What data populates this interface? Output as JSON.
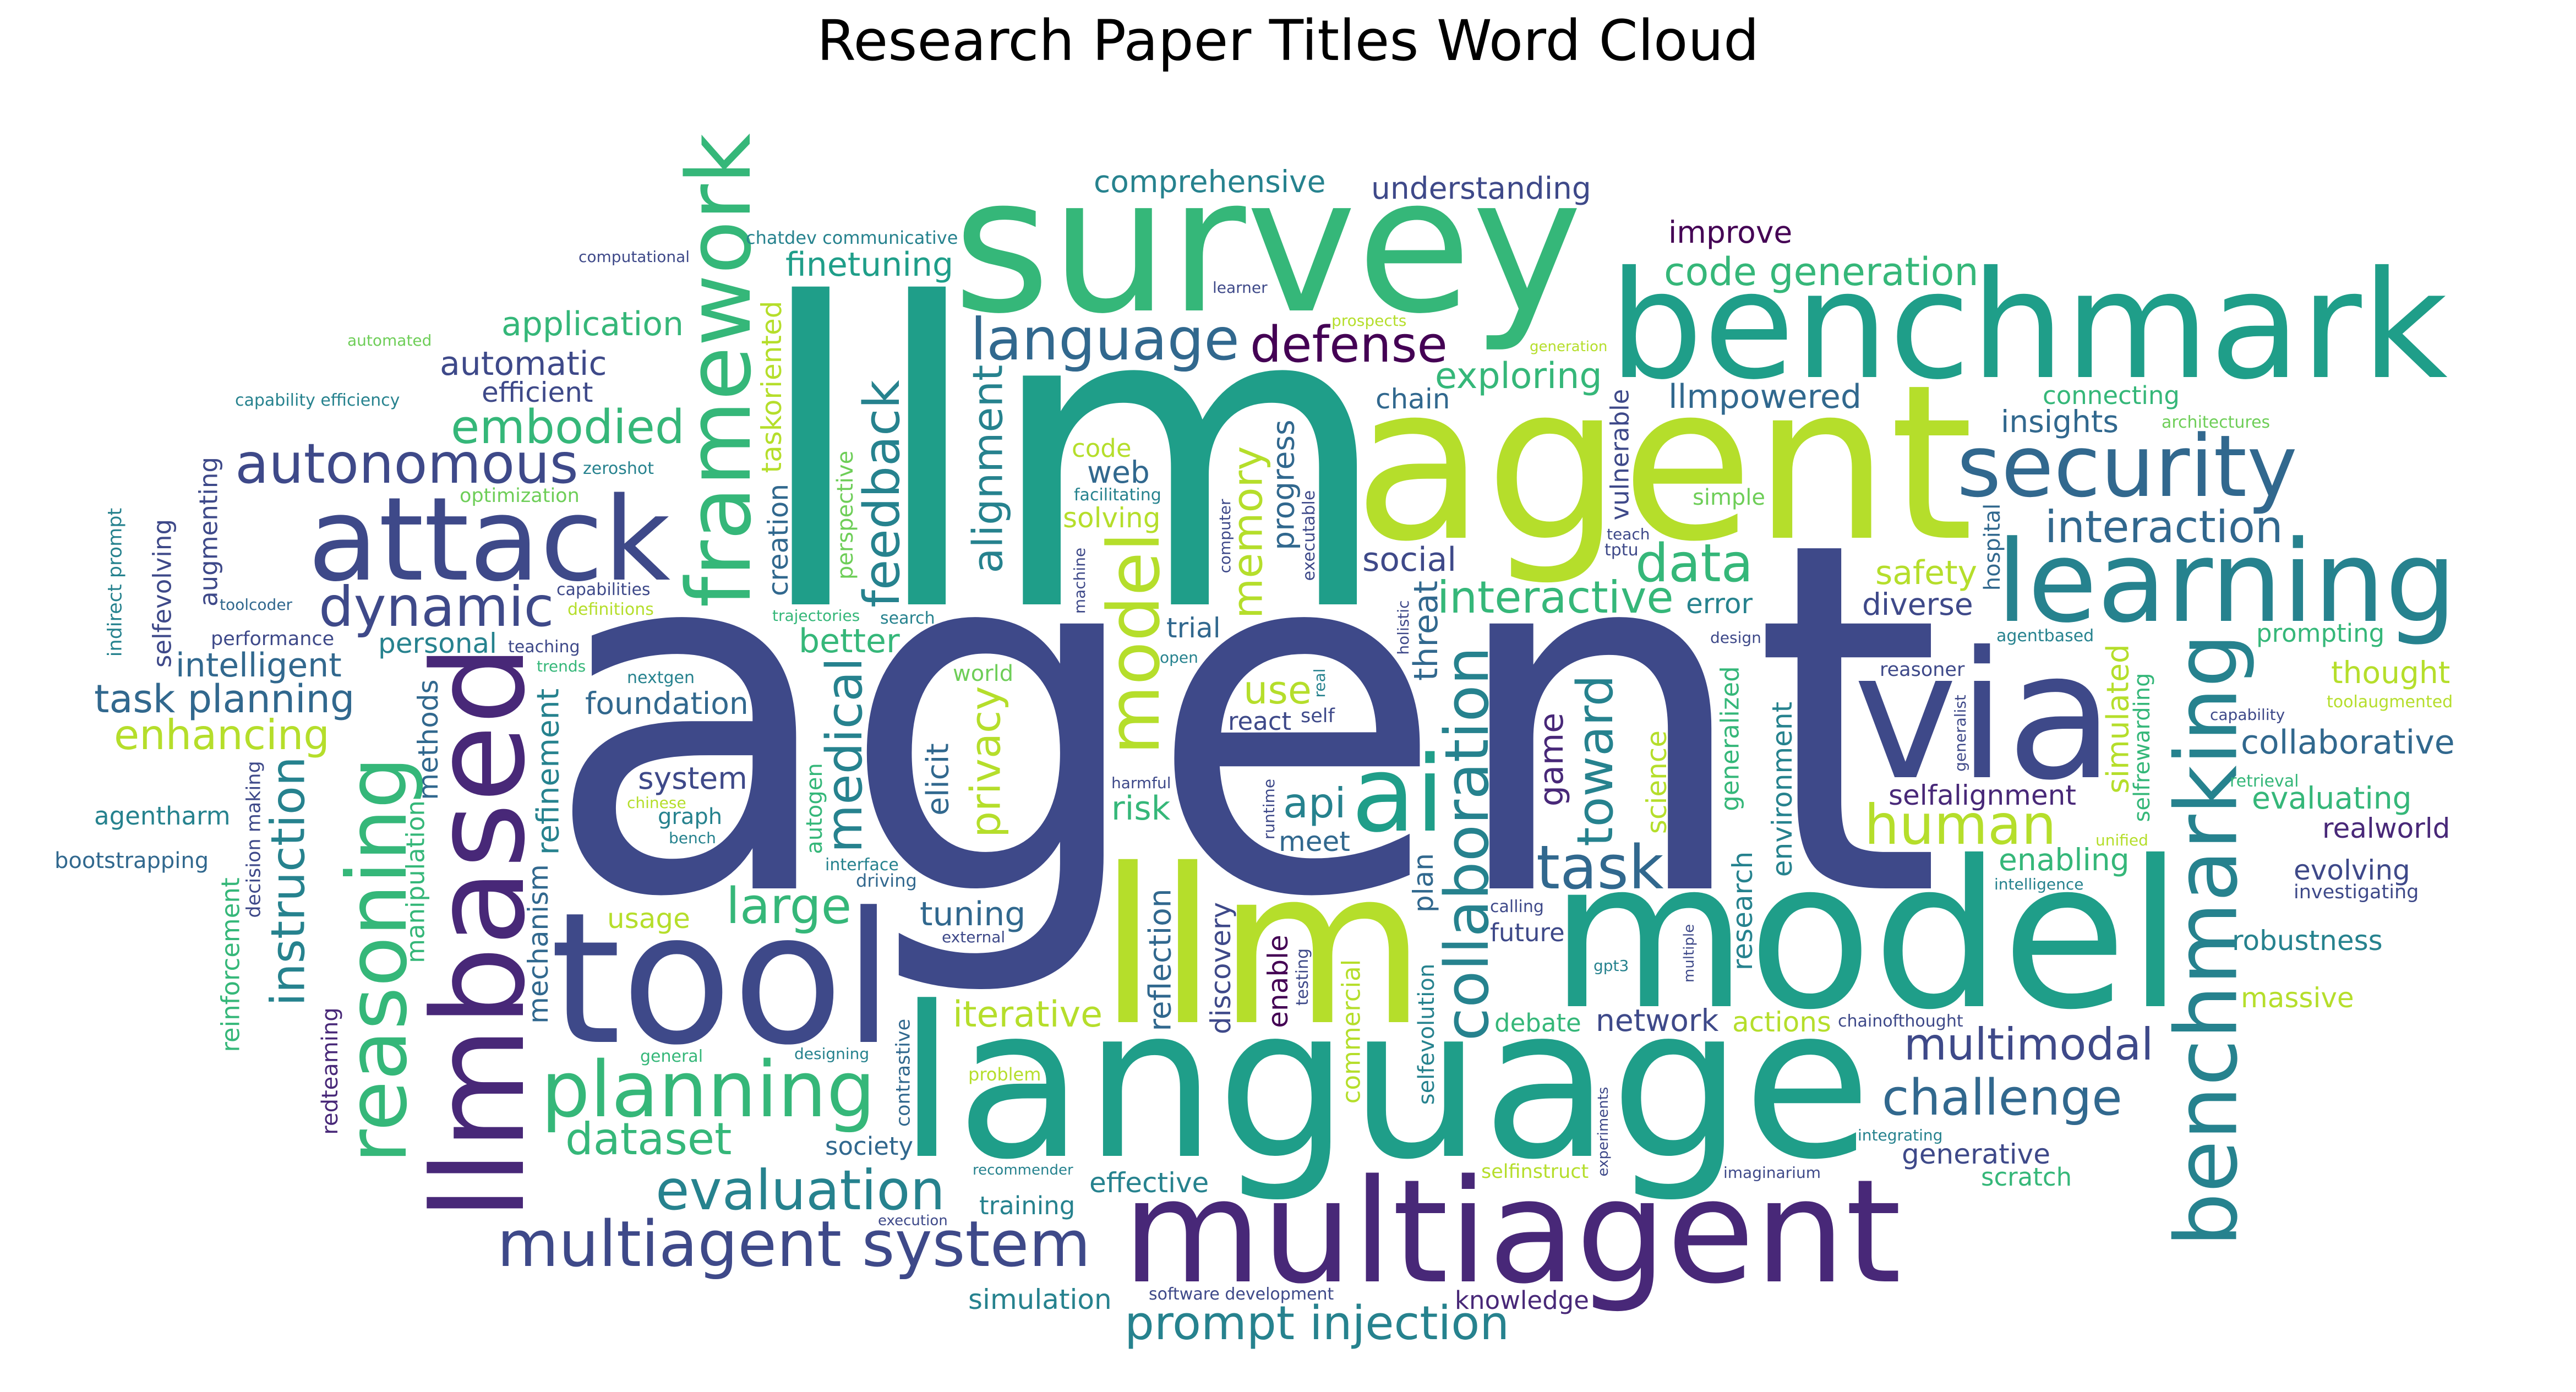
{
  "title": "Research Paper Titles Word Cloud",
  "palette": [
    "#440154",
    "#482878",
    "#3e4989",
    "#31688e",
    "#26828e",
    "#1f9e89",
    "#35b779",
    "#6ece58",
    "#b5de2b",
    "#fde725"
  ],
  "words": [
    {
      "text": "agent",
      "size": 880,
      "color": "#3e4989"
    },
    {
      "text": "llm",
      "size": 760,
      "color": "#1f9e89"
    },
    {
      "text": "llm",
      "size": 390,
      "color": "#b5de2b"
    },
    {
      "text": "agent",
      "size": 390,
      "color": "#b5de2b"
    },
    {
      "text": "language",
      "size": 380,
      "color": "#1f9e89"
    },
    {
      "text": "model",
      "size": 370,
      "color": "#1f9e89"
    },
    {
      "text": "survey",
      "size": 340,
      "color": "#35b779"
    },
    {
      "text": "tool",
      "size": 330,
      "color": "#3e4989"
    },
    {
      "text": "via",
      "size": 320,
      "color": "#3e4989"
    },
    {
      "text": "benchmark",
      "size": 270,
      "color": "#1f9e89"
    },
    {
      "text": "multiagent",
      "size": 260,
      "color": "#482878"
    },
    {
      "text": "llmbased",
      "size": 230,
      "color": "#482878"
    },
    {
      "text": "attack",
      "size": 210,
      "color": "#3e4989"
    },
    {
      "text": "learning",
      "size": 205,
      "color": "#26828e"
    },
    {
      "text": "ai",
      "size": 190,
      "color": "#1f9e89"
    },
    {
      "text": "framework",
      "size": 160,
      "color": "#35b779"
    },
    {
      "text": "benchmarking",
      "size": 155,
      "color": "#26828e"
    },
    {
      "text": "security",
      "size": 155,
      "color": "#31688e"
    },
    {
      "text": "reasoning",
      "size": 150,
      "color": "#35b779"
    },
    {
      "text": "planning",
      "size": 140,
      "color": "#35b779"
    },
    {
      "text": "multiagent system",
      "size": 115,
      "color": "#3e4989"
    },
    {
      "text": "collaboration",
      "size": 110,
      "color": "#26828e"
    },
    {
      "text": "model",
      "size": 130,
      "color": "#b5de2b"
    },
    {
      "text": "language",
      "size": 105,
      "color": "#31688e"
    },
    {
      "text": "challenge",
      "size": 90,
      "color": "#31688e"
    },
    {
      "text": "prompt injection",
      "size": 85,
      "color": "#26828e"
    },
    {
      "text": "code generation",
      "size": 70,
      "color": "#35b779"
    },
    {
      "text": "medical",
      "size": 90,
      "color": "#26828e"
    },
    {
      "text": "dynamic",
      "size": 100,
      "color": "#3e4989"
    },
    {
      "text": "data",
      "size": 95,
      "color": "#35b779"
    },
    {
      "text": "task",
      "size": 110,
      "color": "#31688e"
    },
    {
      "text": "large",
      "size": 90,
      "color": "#35b779"
    },
    {
      "text": "defense",
      "size": 90,
      "color": "#440154"
    },
    {
      "text": "privacy",
      "size": 75,
      "color": "#b5de2b"
    },
    {
      "text": "human",
      "size": 100,
      "color": "#b5de2b"
    },
    {
      "text": "multimodal",
      "size": 80,
      "color": "#3e4989"
    },
    {
      "text": "interaction",
      "size": 80,
      "color": "#31688e"
    },
    {
      "text": "evaluation",
      "size": 100,
      "color": "#26828e"
    },
    {
      "text": "autonomous",
      "size": 100,
      "color": "#3e4989"
    },
    {
      "text": "feedback",
      "size": 90,
      "color": "#26828e"
    },
    {
      "text": "embodied",
      "size": 85,
      "color": "#35b779"
    },
    {
      "text": "instruction",
      "size": 85,
      "color": "#26828e"
    },
    {
      "text": "interactive",
      "size": 80,
      "color": "#35b779"
    },
    {
      "text": "exploring",
      "size": 65,
      "color": "#35b779"
    },
    {
      "text": "dataset",
      "size": 80,
      "color": "#35b779"
    },
    {
      "text": "enhancing",
      "size": 75,
      "color": "#b5de2b"
    },
    {
      "text": "toward",
      "size": 90,
      "color": "#26828e"
    },
    {
      "text": "alignment",
      "size": 75,
      "color": "#26828e"
    },
    {
      "text": "task planning",
      "size": 70,
      "color": "#31688e"
    },
    {
      "text": "automatic",
      "size": 60,
      "color": "#3e4989"
    },
    {
      "text": "comprehensive",
      "size": 55,
      "color": "#26828e"
    },
    {
      "text": "refinement",
      "size": 55,
      "color": "#26828e"
    },
    {
      "text": "llmpowered",
      "size": 60,
      "color": "#31688e"
    },
    {
      "text": "game",
      "size": 60,
      "color": "#482878"
    },
    {
      "text": "social",
      "size": 60,
      "color": "#3e4989"
    },
    {
      "text": "intelligent",
      "size": 60,
      "color": "#31688e"
    },
    {
      "text": "api",
      "size": 75,
      "color": "#26828e"
    },
    {
      "text": "iterative",
      "size": 65,
      "color": "#b5de2b"
    },
    {
      "text": "use",
      "size": 70,
      "color": "#b5de2b"
    },
    {
      "text": "memory",
      "size": 75,
      "color": "#b5de2b"
    },
    {
      "text": "application",
      "size": 60,
      "color": "#35b779"
    },
    {
      "text": "finetuning",
      "size": 60,
      "color": "#1f9e89"
    },
    {
      "text": "reinforcement",
      "size": 45,
      "color": "#35b779"
    },
    {
      "text": "mechanism",
      "size": 50,
      "color": "#31688e"
    },
    {
      "text": "discovery",
      "size": 50,
      "color": "#3e4989"
    },
    {
      "text": "manipulation",
      "size": 45,
      "color": "#35b779"
    },
    {
      "text": "safety",
      "size": 60,
      "color": "#b5de2b"
    },
    {
      "text": "risk",
      "size": 60,
      "color": "#35b779"
    },
    {
      "text": "network",
      "size": 55,
      "color": "#3e4989"
    },
    {
      "text": "tuning",
      "size": 60,
      "color": "#31688e"
    },
    {
      "text": "foundation",
      "size": 55,
      "color": "#31688e"
    },
    {
      "text": "meet",
      "size": 50,
      "color": "#31688e"
    },
    {
      "text": "creation",
      "size": 50,
      "color": "#31688e"
    },
    {
      "text": "collaborative",
      "size": 60,
      "color": "#31688e"
    },
    {
      "text": "environment",
      "size": 50,
      "color": "#26828e"
    },
    {
      "text": "diverse",
      "size": 55,
      "color": "#3e4989"
    },
    {
      "text": "system",
      "size": 55,
      "color": "#3e4989"
    },
    {
      "text": "reflection",
      "size": 55,
      "color": "#31688e"
    },
    {
      "text": "insights",
      "size": 55,
      "color": "#31688e"
    },
    {
      "text": "threat",
      "size": 60,
      "color": "#31688e"
    },
    {
      "text": "elicit",
      "size": 55,
      "color": "#31688e"
    },
    {
      "text": "progress",
      "size": 55,
      "color": "#31688e"
    },
    {
      "text": "plan",
      "size": 50,
      "color": "#31688e"
    },
    {
      "text": "web",
      "size": 55,
      "color": "#31688e"
    },
    {
      "text": "simulated",
      "size": 55,
      "color": "#b5de2b"
    },
    {
      "text": "personal",
      "size": 50,
      "color": "#26828e"
    },
    {
      "text": "actions",
      "size": 50,
      "color": "#b5de2b"
    },
    {
      "text": "evolving",
      "size": 50,
      "color": "#3e4989"
    },
    {
      "text": "better",
      "size": 60,
      "color": "#35b779"
    },
    {
      "text": "robustness",
      "size": 50,
      "color": "#26828e"
    },
    {
      "text": "selfalignment",
      "size": 50,
      "color": "#482878"
    },
    {
      "text": "improve",
      "size": 55,
      "color": "#440154"
    },
    {
      "text": "react",
      "size": 45,
      "color": "#3e4989"
    },
    {
      "text": "society",
      "size": 45,
      "color": "#31688e"
    },
    {
      "text": "solving",
      "size": 50,
      "color": "#b5de2b"
    },
    {
      "text": "selfevolution",
      "size": 40,
      "color": "#26828e"
    },
    {
      "text": "massive",
      "size": 50,
      "color": "#b5de2b"
    },
    {
      "text": "thought",
      "size": 55,
      "color": "#b5de2b"
    },
    {
      "text": "effective",
      "size": 50,
      "color": "#26828e"
    },
    {
      "text": "generative",
      "size": 50,
      "color": "#3e4989"
    },
    {
      "text": "evaluating",
      "size": 55,
      "color": "#35b779"
    },
    {
      "text": "usage",
      "size": 50,
      "color": "#b5de2b"
    },
    {
      "text": "understanding",
      "size": 55,
      "color": "#3e4989"
    },
    {
      "text": "enabling",
      "size": 55,
      "color": "#35b779"
    },
    {
      "text": "training",
      "size": 45,
      "color": "#26828e"
    },
    {
      "text": "bootstrapping",
      "size": 40,
      "color": "#31688e"
    },
    {
      "text": "selfinstruct",
      "size": 35,
      "color": "#b5de2b"
    },
    {
      "text": "chain",
      "size": 50,
      "color": "#31688e"
    },
    {
      "text": "methods",
      "size": 50,
      "color": "#31688e"
    },
    {
      "text": "simulation",
      "size": 50,
      "color": "#26828e"
    },
    {
      "text": "trial",
      "size": 50,
      "color": "#31688e"
    },
    {
      "text": "efficient",
      "size": 50,
      "color": "#3e4989"
    },
    {
      "text": "research",
      "size": 50,
      "color": "#26828e"
    },
    {
      "text": "error",
      "size": 50,
      "color": "#26828e"
    },
    {
      "text": "debate",
      "size": 45,
      "color": "#35b779"
    },
    {
      "text": "connecting",
      "size": 45,
      "color": "#35b779"
    },
    {
      "text": "selfrewarding",
      "size": 40,
      "color": "#35b779"
    },
    {
      "text": "agentharm",
      "size": 45,
      "color": "#26828e"
    },
    {
      "text": "commercial",
      "size": 45,
      "color": "#b5de2b"
    },
    {
      "text": "graph",
      "size": 40,
      "color": "#26828e"
    },
    {
      "text": "taskoriented",
      "size": 50,
      "color": "#b5de2b"
    },
    {
      "text": "realworld",
      "size": 50,
      "color": "#482878"
    },
    {
      "text": "selfevolving",
      "size": 45,
      "color": "#3e4989"
    },
    {
      "text": "vulnerable",
      "size": 45,
      "color": "#3e4989"
    },
    {
      "text": "prompting",
      "size": 45,
      "color": "#35b779"
    },
    {
      "text": "augmenting",
      "size": 45,
      "color": "#3e4989"
    },
    {
      "text": "scratch",
      "size": 45,
      "color": "#35b779"
    },
    {
      "text": "generalized",
      "size": 45,
      "color": "#35b779"
    },
    {
      "text": "future",
      "size": 45,
      "color": "#3e4989"
    },
    {
      "text": "enable",
      "size": 50,
      "color": "#440154"
    },
    {
      "text": "science",
      "size": 50,
      "color": "#b5de2b"
    },
    {
      "text": "investigating",
      "size": 35,
      "color": "#3e4989"
    },
    {
      "text": "hospital",
      "size": 40,
      "color": "#31688e"
    },
    {
      "text": "contrastive",
      "size": 35,
      "color": "#31688e"
    },
    {
      "text": "code",
      "size": 45,
      "color": "#b5de2b"
    },
    {
      "text": "knowledge",
      "size": 45,
      "color": "#482878"
    },
    {
      "text": "redteaming",
      "size": 40,
      "color": "#482878"
    },
    {
      "text": "autogen",
      "size": 40,
      "color": "#35b779"
    },
    {
      "text": "perspective",
      "size": 40,
      "color": "#6ece58"
    },
    {
      "text": "world",
      "size": 40,
      "color": "#6ece58"
    },
    {
      "text": "optimization",
      "size": 35,
      "color": "#6ece58"
    },
    {
      "text": "performance",
      "size": 35,
      "color": "#3e4989"
    },
    {
      "text": "software development",
      "size": 30,
      "color": "#3e4989"
    },
    {
      "text": "simple",
      "size": 40,
      "color": "#6ece58"
    },
    {
      "text": "decision making",
      "size": 35,
      "color": "#3e4989"
    },
    {
      "text": "reasoner",
      "size": 35,
      "color": "#3e4989"
    },
    {
      "text": "capabilities",
      "size": 30,
      "color": "#3e4989"
    },
    {
      "text": "facilitating",
      "size": 30,
      "color": "#26828e"
    },
    {
      "text": "nextgen",
      "size": 30,
      "color": "#26828e"
    },
    {
      "text": "definitions",
      "size": 30,
      "color": "#b5de2b"
    },
    {
      "text": "search",
      "size": 30,
      "color": "#26828e"
    },
    {
      "text": "indirect prompt",
      "size": 35,
      "color": "#26828e"
    },
    {
      "text": "toolaugmented",
      "size": 30,
      "color": "#b5de2b"
    },
    {
      "text": "interface",
      "size": 30,
      "color": "#26828e"
    },
    {
      "text": "bench",
      "size": 28,
      "color": "#26828e"
    },
    {
      "text": "architectures",
      "size": 30,
      "color": "#6ece58"
    },
    {
      "text": "general",
      "size": 30,
      "color": "#35b779"
    },
    {
      "text": "retrieval",
      "size": 30,
      "color": "#35b779"
    },
    {
      "text": "teach",
      "size": 28,
      "color": "#3e4989"
    },
    {
      "text": "runtime",
      "size": 28,
      "color": "#3e4989"
    },
    {
      "text": "executable",
      "size": 30,
      "color": "#3e4989"
    },
    {
      "text": "open",
      "size": 28,
      "color": "#26828e"
    },
    {
      "text": "testing",
      "size": 30,
      "color": "#3e4989"
    },
    {
      "text": "zeroshot",
      "size": 30,
      "color": "#26828e"
    },
    {
      "text": "agentbased",
      "size": 30,
      "color": "#26828e"
    },
    {
      "text": "teaching",
      "size": 30,
      "color": "#3e4989"
    },
    {
      "text": "automated",
      "size": 28,
      "color": "#6ece58"
    },
    {
      "text": "trajectories",
      "size": 28,
      "color": "#35b779"
    },
    {
      "text": "capability efficiency",
      "size": 30,
      "color": "#26828e"
    },
    {
      "text": "machine",
      "size": 28,
      "color": "#3e4989"
    },
    {
      "text": "chainofthought",
      "size": 30,
      "color": "#3e4989"
    },
    {
      "text": "real",
      "size": 28,
      "color": "#26828e"
    },
    {
      "text": "problem",
      "size": 32,
      "color": "#b5de2b"
    },
    {
      "text": "self",
      "size": 35,
      "color": "#3e4989"
    },
    {
      "text": "designing",
      "size": 28,
      "color": "#26828e"
    },
    {
      "text": "computer",
      "size": 28,
      "color": "#3e4989"
    },
    {
      "text": "generalist",
      "size": 28,
      "color": "#3e4989"
    },
    {
      "text": "calling",
      "size": 30,
      "color": "#3e4989"
    },
    {
      "text": "integrating",
      "size": 28,
      "color": "#26828e"
    },
    {
      "text": "learner",
      "size": 28,
      "color": "#3e4989"
    },
    {
      "text": "chinese",
      "size": 28,
      "color": "#b5de2b"
    },
    {
      "text": "chatdev communicative",
      "size": 32,
      "color": "#26828e"
    },
    {
      "text": "harmful",
      "size": 28,
      "color": "#3e4989"
    },
    {
      "text": "external",
      "size": 28,
      "color": "#3e4989"
    },
    {
      "text": "recommender",
      "size": 26,
      "color": "#26828e"
    },
    {
      "text": "execution",
      "size": 26,
      "color": "#3e4989"
    },
    {
      "text": "holistic",
      "size": 28,
      "color": "#3e4989"
    },
    {
      "text": "unified",
      "size": 28,
      "color": "#b5de2b"
    },
    {
      "text": "driving",
      "size": 32,
      "color": "#31688e"
    },
    {
      "text": "tptu",
      "size": 30,
      "color": "#3e4989"
    },
    {
      "text": "gpt3",
      "size": 28,
      "color": "#26828e"
    },
    {
      "text": "imaginarium",
      "size": 28,
      "color": "#3e4989"
    },
    {
      "text": "trends",
      "size": 28,
      "color": "#35b779"
    },
    {
      "text": "toolcoder",
      "size": 28,
      "color": "#31688e"
    },
    {
      "text": "generation",
      "size": 26,
      "color": "#b5de2b"
    },
    {
      "text": "capability",
      "size": 28,
      "color": "#3e4989"
    },
    {
      "text": "design",
      "size": 28,
      "color": "#3e4989"
    },
    {
      "text": "experiments",
      "size": 26,
      "color": "#3e4989"
    },
    {
      "text": "multiple",
      "size": 26,
      "color": "#3e4989"
    },
    {
      "text": "computational",
      "size": 28,
      "color": "#3e4989"
    },
    {
      "text": "intelligence",
      "size": 28,
      "color": "#26828e"
    },
    {
      "text": "prospects",
      "size": 28,
      "color": "#b5de2b"
    }
  ]
}
